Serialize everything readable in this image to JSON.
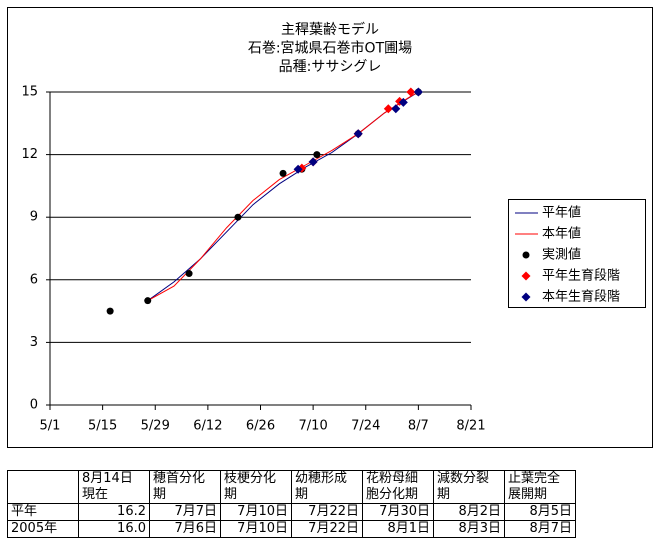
{
  "chart_data": {
    "type": "line",
    "title": [
      "主稈葉齢モデル",
      "石巻:宮城県石巻市OT圃場",
      "品種:ササシグレ"
    ],
    "xlim": [
      "5/1",
      "8/21"
    ],
    "xticks": [
      "5/1",
      "5/15",
      "5/29",
      "6/12",
      "6/26",
      "7/10",
      "7/24",
      "8/7",
      "8/21"
    ],
    "ylim": [
      0,
      15
    ],
    "yticks": [
      0,
      3,
      6,
      9,
      12,
      15
    ],
    "grid": true,
    "legend": "right",
    "series": [
      {
        "name": "平年値",
        "color": "#000080",
        "marker": "none",
        "x": [
          "5/27",
          "6/3",
          "6/10",
          "6/17",
          "6/24",
          "7/1",
          "7/8",
          "7/15",
          "7/22",
          "7/29",
          "8/7"
        ],
        "values": [
          5.0,
          5.9,
          7.0,
          8.3,
          9.6,
          10.6,
          11.4,
          12.1,
          13.0,
          14.0,
          15.0
        ]
      },
      {
        "name": "本年値",
        "color": "#ff0000",
        "marker": "none",
        "x": [
          "5/27",
          "6/3",
          "6/10",
          "6/17",
          "6/24",
          "7/1",
          "7/8",
          "7/15",
          "7/22",
          "7/29",
          "8/5",
          "8/7"
        ],
        "values": [
          5.0,
          5.7,
          7.0,
          8.5,
          9.8,
          10.8,
          11.5,
          12.2,
          13.0,
          14.0,
          14.8,
          15.0
        ]
      },
      {
        "name": "実測値",
        "color": "#000000",
        "marker": "circle",
        "x": [
          "5/17",
          "5/27",
          "6/7",
          "6/20",
          "7/2",
          "7/7",
          "7/11",
          "7/22",
          "8/7"
        ],
        "values": [
          4.5,
          5.0,
          6.3,
          9.0,
          11.1,
          11.3,
          12.0,
          13.0,
          15.0
        ]
      },
      {
        "name": "平年生育段階",
        "color": "#ff0000",
        "marker": "diamond",
        "x": [
          "7/7",
          "7/10",
          "7/22",
          "7/30",
          "8/2",
          "8/5"
        ],
        "values": [
          11.35,
          11.65,
          13.0,
          14.2,
          14.55,
          15.0
        ]
      },
      {
        "name": "本年生育段階",
        "color": "#000080",
        "marker": "diamond",
        "x": [
          "7/6",
          "7/10",
          "7/22",
          "8/1",
          "8/3",
          "8/7"
        ],
        "values": [
          11.3,
          11.65,
          13.0,
          14.2,
          14.5,
          15.0
        ]
      }
    ]
  },
  "table": {
    "header": [
      [
        "8月14日",
        "現在"
      ],
      [
        "穂首分化",
        "期"
      ],
      [
        "枝梗分化",
        "期"
      ],
      [
        "幼穂形成",
        "期"
      ],
      [
        "花粉母細",
        "胞分化期"
      ],
      [
        "減数分裂",
        "期"
      ],
      [
        "止葉完全",
        "展開期"
      ]
    ],
    "rows": [
      [
        "平年",
        "16.2",
        "7月7日",
        "7月10日",
        "7月22日",
        "7月30日",
        "8月2日",
        "8月5日"
      ],
      [
        "2005年",
        "16.0",
        "7月6日",
        "7月10日",
        "7月22日",
        "8月1日",
        "8月3日",
        "8月7日"
      ]
    ]
  }
}
